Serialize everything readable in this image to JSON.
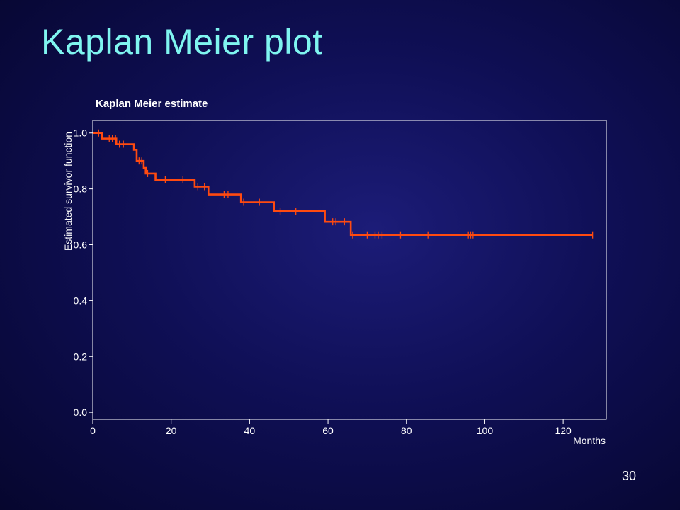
{
  "slide": {
    "title": "Kaplan Meier plot",
    "number": "30"
  },
  "colors": {
    "title": "#7ff5f0",
    "curve": "#ff4a10",
    "axis": "#ffffff"
  },
  "chart_data": {
    "type": "line",
    "step": true,
    "title": "Kaplan Meier estimate",
    "xlabel": "Months",
    "ylabel": "Estimated survivor function",
    "xlim": [
      0,
      131
    ],
    "ylim": [
      -0.025,
      1.045
    ],
    "xticks": [
      0,
      20,
      40,
      60,
      80,
      100,
      120
    ],
    "xtick_labels": [
      "0",
      "20",
      "40",
      "60",
      "80",
      "100",
      "120"
    ],
    "yticks": [
      0.0,
      0.2,
      0.4,
      0.6,
      0.8,
      1.0
    ],
    "ytick_labels": [
      "0.0",
      "0.2",
      "0.4",
      "0.6",
      "0.8",
      "1.0"
    ],
    "grid": false,
    "legend": "none",
    "series": [
      {
        "steps": [
          {
            "x": 0,
            "y": 1.0
          },
          {
            "x": 2.3,
            "y": 0.98
          },
          {
            "x": 6.0,
            "y": 0.96
          },
          {
            "x": 10.5,
            "y": 0.94
          },
          {
            "x": 11.2,
            "y": 0.9
          },
          {
            "x": 13.0,
            "y": 0.875
          },
          {
            "x": 13.5,
            "y": 0.855
          },
          {
            "x": 16.0,
            "y": 0.832
          },
          {
            "x": 26.0,
            "y": 0.808
          },
          {
            "x": 29.5,
            "y": 0.78
          },
          {
            "x": 37.8,
            "y": 0.752
          },
          {
            "x": 46.2,
            "y": 0.72
          },
          {
            "x": 59.2,
            "y": 0.682
          },
          {
            "x": 65.8,
            "y": 0.635
          },
          {
            "x": 127.5,
            "y": 0.635
          }
        ],
        "censored": [
          {
            "x": 1.5,
            "y": 1.0
          },
          {
            "x": 4.2,
            "y": 0.98
          },
          {
            "x": 5.0,
            "y": 0.98
          },
          {
            "x": 5.8,
            "y": 0.98
          },
          {
            "x": 6.8,
            "y": 0.96
          },
          {
            "x": 7.8,
            "y": 0.96
          },
          {
            "x": 11.8,
            "y": 0.9
          },
          {
            "x": 12.5,
            "y": 0.9
          },
          {
            "x": 14.0,
            "y": 0.855
          },
          {
            "x": 18.5,
            "y": 0.832
          },
          {
            "x": 23.0,
            "y": 0.832
          },
          {
            "x": 26.8,
            "y": 0.808
          },
          {
            "x": 28.5,
            "y": 0.808
          },
          {
            "x": 33.5,
            "y": 0.78
          },
          {
            "x": 34.5,
            "y": 0.78
          },
          {
            "x": 38.5,
            "y": 0.752
          },
          {
            "x": 42.5,
            "y": 0.752
          },
          {
            "x": 47.8,
            "y": 0.72
          },
          {
            "x": 51.8,
            "y": 0.72
          },
          {
            "x": 61.2,
            "y": 0.682
          },
          {
            "x": 62.0,
            "y": 0.682
          },
          {
            "x": 64.2,
            "y": 0.682
          },
          {
            "x": 66.3,
            "y": 0.635
          },
          {
            "x": 70.0,
            "y": 0.635
          },
          {
            "x": 72.0,
            "y": 0.635
          },
          {
            "x": 72.8,
            "y": 0.635
          },
          {
            "x": 73.8,
            "y": 0.635
          },
          {
            "x": 78.5,
            "y": 0.635
          },
          {
            "x": 85.5,
            "y": 0.635
          },
          {
            "x": 95.8,
            "y": 0.635
          },
          {
            "x": 96.4,
            "y": 0.635
          },
          {
            "x": 97.0,
            "y": 0.635
          },
          {
            "x": 127.5,
            "y": 0.635
          }
        ]
      }
    ]
  }
}
